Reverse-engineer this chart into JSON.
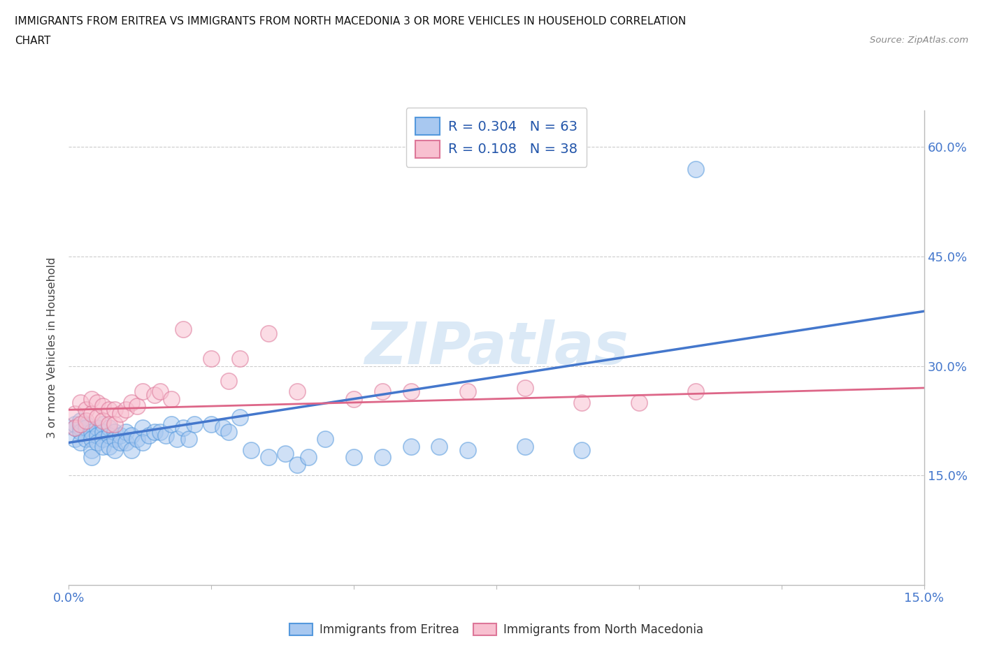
{
  "title_line1": "IMMIGRANTS FROM ERITREA VS IMMIGRANTS FROM NORTH MACEDONIA 3 OR MORE VEHICLES IN HOUSEHOLD CORRELATION",
  "title_line2": "CHART",
  "source": "Source: ZipAtlas.com",
  "xlim": [
    0.0,
    0.15
  ],
  "ylim": [
    0.0,
    0.65
  ],
  "ytick_positions": [
    0.15,
    0.3,
    0.45,
    0.6
  ],
  "ytick_labels": [
    "15.0%",
    "30.0%",
    "45.0%",
    "60.0%"
  ],
  "xtick_positions": [
    0.0,
    0.025,
    0.05,
    0.075,
    0.1,
    0.125,
    0.15
  ],
  "xtick_labels": [
    "0.0%",
    "",
    "",
    "",
    "",
    "",
    "15.0%"
  ],
  "watermark": "ZIPatlas",
  "legend_r1": "R = 0.304",
  "legend_n1": "N = 63",
  "legend_r2": "R = 0.108",
  "legend_n2": "N = 38",
  "color_eritrea_fill": "#a8c8f0",
  "color_eritrea_edge": "#5599dd",
  "color_eritrea_line": "#4477cc",
  "color_macedonia_fill": "#f8c0d0",
  "color_macedonia_edge": "#dd7799",
  "color_macedonia_line": "#dd6688",
  "color_legend_text": "#2255aa",
  "color_tick_label": "#4477cc",
  "color_grid": "#cccccc",
  "eritrea_x": [
    0.001,
    0.001,
    0.001,
    0.002,
    0.002,
    0.002,
    0.002,
    0.003,
    0.003,
    0.003,
    0.004,
    0.004,
    0.004,
    0.004,
    0.005,
    0.005,
    0.005,
    0.006,
    0.006,
    0.006,
    0.006,
    0.007,
    0.007,
    0.007,
    0.008,
    0.008,
    0.008,
    0.009,
    0.009,
    0.01,
    0.01,
    0.011,
    0.011,
    0.012,
    0.013,
    0.013,
    0.014,
    0.015,
    0.016,
    0.017,
    0.018,
    0.019,
    0.02,
    0.021,
    0.022,
    0.025,
    0.027,
    0.028,
    0.03,
    0.032,
    0.035,
    0.038,
    0.04,
    0.042,
    0.045,
    0.05,
    0.055,
    0.06,
    0.065,
    0.07,
    0.08,
    0.09,
    0.11
  ],
  "eritrea_y": [
    0.215,
    0.22,
    0.2,
    0.215,
    0.225,
    0.21,
    0.195,
    0.22,
    0.215,
    0.2,
    0.21,
    0.2,
    0.185,
    0.175,
    0.215,
    0.205,
    0.195,
    0.22,
    0.21,
    0.2,
    0.19,
    0.215,
    0.205,
    0.19,
    0.21,
    0.2,
    0.185,
    0.205,
    0.195,
    0.21,
    0.195,
    0.205,
    0.185,
    0.2,
    0.215,
    0.195,
    0.205,
    0.21,
    0.21,
    0.205,
    0.22,
    0.2,
    0.215,
    0.2,
    0.22,
    0.22,
    0.215,
    0.21,
    0.23,
    0.185,
    0.175,
    0.18,
    0.165,
    0.175,
    0.2,
    0.175,
    0.175,
    0.19,
    0.19,
    0.185,
    0.19,
    0.185,
    0.57
  ],
  "macedonia_x": [
    0.001,
    0.001,
    0.002,
    0.002,
    0.003,
    0.003,
    0.004,
    0.004,
    0.005,
    0.005,
    0.006,
    0.006,
    0.007,
    0.007,
    0.008,
    0.008,
    0.009,
    0.01,
    0.011,
    0.012,
    0.013,
    0.015,
    0.016,
    0.018,
    0.02,
    0.025,
    0.028,
    0.03,
    0.035,
    0.04,
    0.05,
    0.055,
    0.06,
    0.07,
    0.08,
    0.09,
    0.1,
    0.11
  ],
  "macedonia_y": [
    0.235,
    0.215,
    0.25,
    0.22,
    0.24,
    0.225,
    0.255,
    0.235,
    0.25,
    0.23,
    0.245,
    0.225,
    0.24,
    0.22,
    0.24,
    0.22,
    0.235,
    0.24,
    0.25,
    0.245,
    0.265,
    0.26,
    0.265,
    0.255,
    0.35,
    0.31,
    0.28,
    0.31,
    0.345,
    0.265,
    0.255,
    0.265,
    0.265,
    0.265,
    0.27,
    0.25,
    0.25,
    0.265
  ],
  "eri_line_x": [
    0.0,
    0.15
  ],
  "eri_line_y": [
    0.195,
    0.375
  ],
  "mac_line_x": [
    0.0,
    0.15
  ],
  "mac_line_y": [
    0.24,
    0.27
  ]
}
